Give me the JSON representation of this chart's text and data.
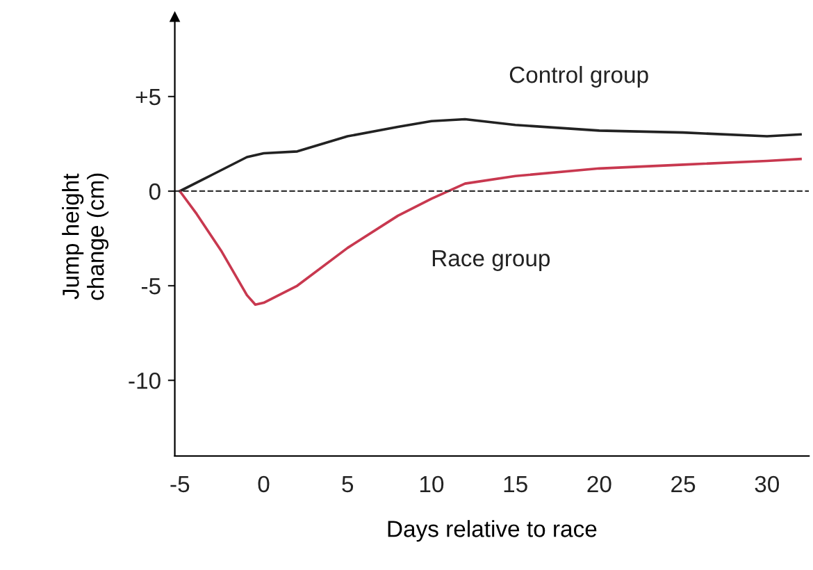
{
  "chart_data": {
    "type": "line",
    "xlabel": "Days relative to race",
    "ylabel": "Jump height\nchange (cm)",
    "xlim": [
      -5.3,
      32.5
    ],
    "ylim": [
      -14,
      9.2
    ],
    "xticks": [
      {
        "value": -5,
        "label": "-5"
      },
      0,
      5,
      10,
      15,
      20,
      25,
      30
    ],
    "yticks": [
      {
        "value": -10,
        "label": "-10"
      },
      {
        "value": -5,
        "label": "-5"
      },
      0,
      {
        "value": 5,
        "label": "+5"
      }
    ],
    "grid": false,
    "legend": false,
    "marker": "none",
    "line_style": "solid",
    "series": [
      {
        "name": "Control group",
        "color": "#222222",
        "x": [
          -5,
          -3,
          -1,
          0,
          2,
          5,
          8,
          10,
          12,
          15,
          20,
          25,
          30,
          32
        ],
        "values": [
          0,
          0.9,
          1.8,
          2,
          2.1,
          2.9,
          3.4,
          3.7,
          3.8,
          3.5,
          3.2,
          3.1,
          2.9,
          3.0
        ]
      },
      {
        "name": "Race group",
        "color": "#c8384f",
        "x": [
          -5,
          -4,
          -2.5,
          -1,
          -0.5,
          0,
          2,
          5,
          8,
          10,
          12,
          15,
          20,
          25,
          30,
          32
        ],
        "values": [
          0,
          -1.2,
          -3.2,
          -5.5,
          -6,
          -5.9,
          -5,
          -3,
          -1.3,
          -0.4,
          0.4,
          0.8,
          1.2,
          1.4,
          1.6,
          1.7
        ]
      }
    ],
    "ref_lines": [
      {
        "axis": "y",
        "value": 0,
        "line_style": "dashed",
        "color": "#333333"
      }
    ]
  }
}
